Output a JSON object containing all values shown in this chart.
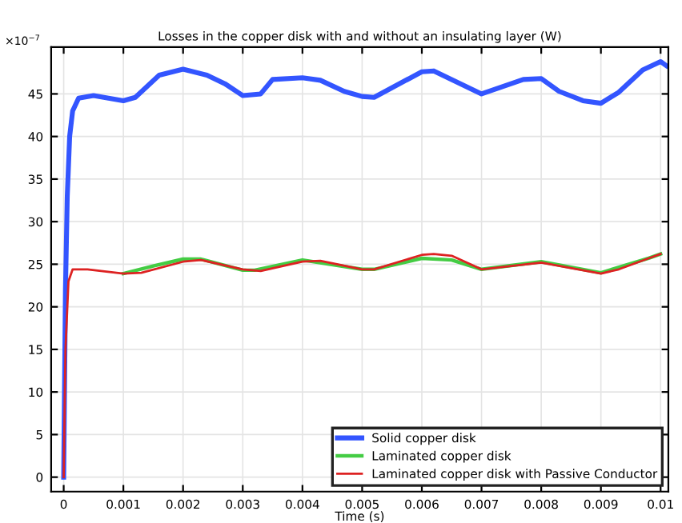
{
  "chart_data": {
    "type": "line",
    "title": "Losses in the copper disk with and without an insulating layer (W)",
    "xlabel": "Time (s)",
    "annotations": [
      "×10$^{−7}$"
    ],
    "xlim": [
      -0.00021,
      0.01013
    ],
    "ylim": [
      -1.7,
      50.5
    ],
    "xticks": [
      0,
      0.001,
      0.002,
      0.003,
      0.004,
      0.005,
      0.006,
      0.007,
      0.008,
      0.009,
      0.01
    ],
    "yticks": [
      0,
      5,
      10,
      15,
      20,
      25,
      30,
      35,
      40,
      45
    ],
    "grid": true,
    "legend": "bottom right",
    "series": [
      {
        "name": "Solid copper disk",
        "color": "#3355ff",
        "x": [
          0,
          3e-05,
          6e-05,
          0.0001,
          0.00015,
          0.00025,
          0.0005,
          0.001,
          0.0012,
          0.0016,
          0.002,
          0.0024,
          0.0027,
          0.003,
          0.0033,
          0.0035,
          0.004,
          0.0043,
          0.0047,
          0.005,
          0.0052,
          0.006,
          0.0062,
          0.007,
          0.0077,
          0.008,
          0.0083,
          0.0087,
          0.009,
          0.0093,
          0.0097,
          0.01,
          0.0101
        ],
        "values": [
          0,
          22,
          33,
          40,
          43,
          44.5,
          44.8,
          44.2,
          44.6,
          47.2,
          47.9,
          47.2,
          46.2,
          44.8,
          45.0,
          46.7,
          46.9,
          46.6,
          45.3,
          44.7,
          44.6,
          47.6,
          47.7,
          45.0,
          46.7,
          46.8,
          45.3,
          44.2,
          43.9,
          45.2,
          47.8,
          48.8,
          48.3
        ]
      },
      {
        "name": "Laminated copper disk",
        "color": "#44cc44",
        "x": [
          0.001,
          0.0015,
          0.002,
          0.0023,
          0.003,
          0.0032,
          0.004,
          0.005,
          0.0052,
          0.006,
          0.0065,
          0.007,
          0.008,
          0.009,
          0.0098,
          0.01
        ],
        "values": [
          23.9,
          24.8,
          25.6,
          25.6,
          24.3,
          24.3,
          25.5,
          24.4,
          24.4,
          25.7,
          25.5,
          24.4,
          25.3,
          24.0,
          25.7,
          26.2
        ]
      },
      {
        "name": "Laminated copper disk with Passive Conductor",
        "color": "#dd2222",
        "x": [
          0,
          3e-05,
          8e-05,
          0.00015,
          0.0004,
          0.001,
          0.0013,
          0.002,
          0.0023,
          0.003,
          0.0033,
          0.004,
          0.0043,
          0.005,
          0.0052,
          0.006,
          0.0062,
          0.0065,
          0.007,
          0.008,
          0.009,
          0.0093,
          0.0098,
          0.01
        ],
        "values": [
          0,
          15,
          23,
          24.4,
          24.4,
          23.9,
          24.0,
          25.3,
          25.5,
          24.4,
          24.2,
          25.3,
          25.4,
          24.4,
          24.4,
          26.1,
          26.2,
          26.0,
          24.4,
          25.2,
          23.9,
          24.4,
          25.7,
          26.2
        ]
      }
    ]
  }
}
